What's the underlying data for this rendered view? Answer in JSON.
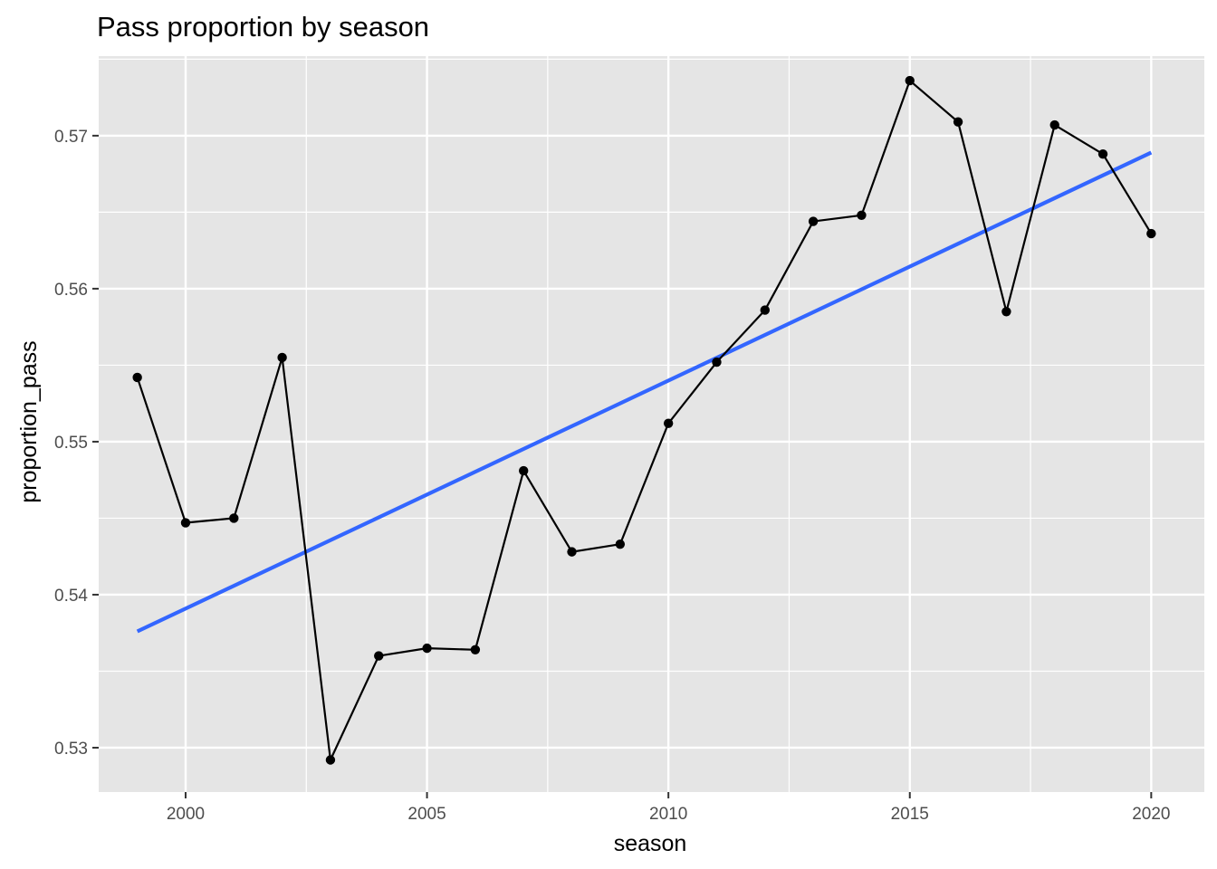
{
  "chart_data": {
    "type": "line",
    "title": "Pass proportion by season",
    "xlabel": "season",
    "ylabel": "proportion_pass",
    "xlim": [
      1998.2,
      2021.1
    ],
    "ylim": [
      0.5271,
      0.5752
    ],
    "x_ticks": [
      2000,
      2005,
      2010,
      2015,
      2020
    ],
    "x_tick_labels": [
      "2000",
      "2005",
      "2010",
      "2015",
      "2020"
    ],
    "y_ticks": [
      0.53,
      0.54,
      0.55,
      0.56,
      0.57
    ],
    "y_tick_labels": [
      "0.53",
      "0.54",
      "0.55",
      "0.56",
      "0.57"
    ],
    "grid": true,
    "background": "#e5e5e5",
    "grid_color": "#ffffff",
    "series": [
      {
        "color": "#000000",
        "points": [
          {
            "x": 1999,
            "y": 0.5542
          },
          {
            "x": 2000,
            "y": 0.5447
          },
          {
            "x": 2001,
            "y": 0.545
          },
          {
            "x": 2002,
            "y": 0.5555
          },
          {
            "x": 2003,
            "y": 0.5292
          },
          {
            "x": 2004,
            "y": 0.536
          },
          {
            "x": 2005,
            "y": 0.5365
          },
          {
            "x": 2006,
            "y": 0.5364
          },
          {
            "x": 2007,
            "y": 0.5481
          },
          {
            "x": 2008,
            "y": 0.5428
          },
          {
            "x": 2009,
            "y": 0.5433
          },
          {
            "x": 2010,
            "y": 0.5512
          },
          {
            "x": 2011,
            "y": 0.5552
          },
          {
            "x": 2012,
            "y": 0.5586
          },
          {
            "x": 2013,
            "y": 0.5644
          },
          {
            "x": 2014,
            "y": 0.5648
          },
          {
            "x": 2015,
            "y": 0.5736
          },
          {
            "x": 2016,
            "y": 0.5709
          },
          {
            "x": 2017,
            "y": 0.5585
          },
          {
            "x": 2018,
            "y": 0.5707
          },
          {
            "x": 2019,
            "y": 0.5688
          },
          {
            "x": 2020,
            "y": 0.5636
          }
        ]
      }
    ],
    "trend_line": {
      "color": "#3366ff",
      "x": [
        1999,
        2020
      ],
      "y": [
        0.5376,
        0.5689
      ]
    }
  }
}
